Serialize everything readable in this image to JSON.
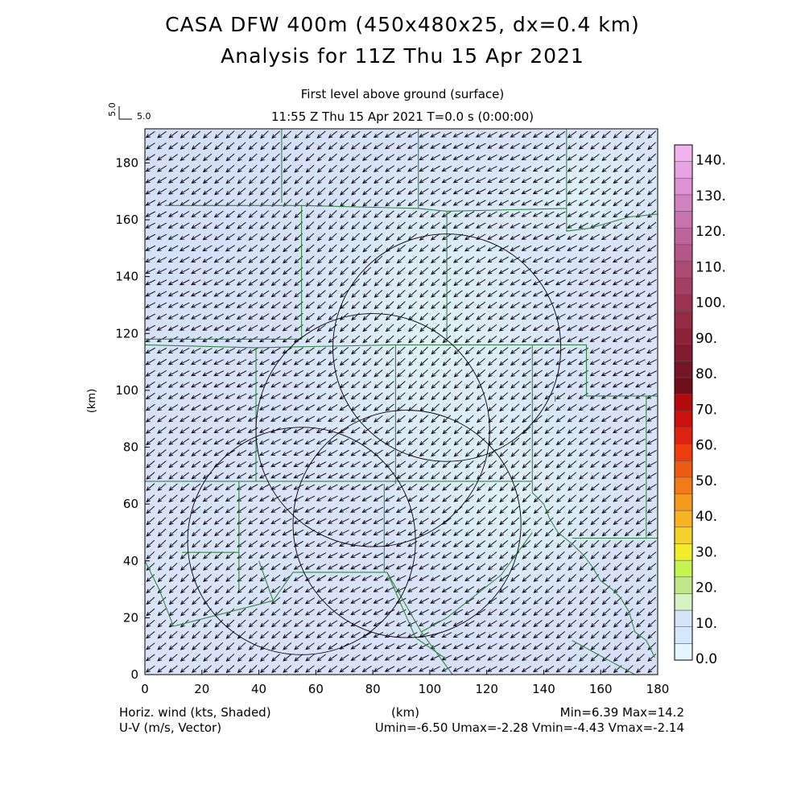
{
  "title_line1": "CASA DFW 400m (450x480x25, dx=0.4 km)",
  "title_line2": "Analysis for 11Z Thu 15 Apr 2021",
  "level_label": "First level above ground (surface)",
  "time_label": "11:55 Z Thu 15 Apr 2021   T=0.0 s (0:00:00)",
  "vector_key": {
    "vertical": "5.0",
    "horizontal": "5.0"
  },
  "footer": {
    "left1": "Horiz. wind (kts, Shaded)",
    "left2": "U-V (m/s, Vector)",
    "center": "(km)",
    "right1": "Min=6.39 Max=14.2",
    "right2": "Umin=-6.50 Umax=-2.28 Vmin=-4.43 Vmax=-2.14"
  },
  "colors": {
    "field_light": "#d8e2fb",
    "field_pale": "#dff3f7",
    "boundary": "#2d8a3d",
    "circle": "#000000",
    "vector": "#000000"
  },
  "chart_data": {
    "type": "contour-map",
    "x_axis": {
      "label": "(km)",
      "range": [
        0,
        180
      ],
      "ticks": [
        0,
        20,
        40,
        60,
        80,
        100,
        120,
        140,
        160,
        180
      ]
    },
    "y_axis": {
      "label": "(km)",
      "range": [
        0,
        192
      ],
      "ticks": [
        0,
        20,
        40,
        60,
        80,
        100,
        120,
        140,
        160,
        180
      ]
    },
    "field": {
      "name": "Horiz. wind (kts, Shaded)",
      "min": 6.39,
      "max": 14.2
    },
    "vector_field": {
      "name": "U-V (m/s, Vector)",
      "umin": -6.5,
      "umax": -2.28,
      "vmin": -4.43,
      "vmax": -2.14,
      "spacing_km": 4
    },
    "colorbar": {
      "labels": [
        "0.0",
        "10.",
        "20.",
        "30.",
        "40.",
        "50.",
        "60.",
        "70.",
        "80.",
        "90.",
        "100.",
        "110.",
        "120.",
        "130.",
        "140."
      ],
      "colors": [
        "#e3f5fd",
        "#d2e8fb",
        "#d4e5fb",
        "#d5f2c2",
        "#bfe88b",
        "#c4f450",
        "#f0ee2c",
        "#f5d22a",
        "#f7b322",
        "#f69a1d",
        "#f37b17",
        "#ef5a13",
        "#ee3c0e",
        "#de2410",
        "#cd100e",
        "#b40c0d",
        "#6e0f1c",
        "#761526",
        "#821a2f",
        "#8c2238",
        "#952a44",
        "#9c3352",
        "#a43e62",
        "#ac4a73",
        "#b45786",
        "#bd649a",
        "#c673ae",
        "#d082c1",
        "#dc92d3",
        "#e8a3e2",
        "#f3b3ee"
      ]
    },
    "radar_circles_km": [
      {
        "cx": 55,
        "cy": 47,
        "r": 40
      },
      {
        "cx": 80,
        "cy": 86,
        "r": 41
      },
      {
        "cx": 106,
        "cy": 115,
        "r": 40
      },
      {
        "cx": 92,
        "cy": 53,
        "r": 40
      }
    ],
    "county_boundaries_km": [
      [
        [
          48,
          192
        ],
        [
          48,
          166
        ]
      ],
      [
        [
          96,
          192
        ],
        [
          96,
          164
        ]
      ],
      [
        [
          148,
          192
        ],
        [
          148,
          164
        ]
      ],
      [
        [
          7,
          165
        ],
        [
          55,
          165
        ],
        [
          55,
          118
        ],
        [
          0,
          118
        ]
      ],
      [
        [
          55,
          165
        ],
        [
          96,
          164
        ],
        [
          106,
          163
        ],
        [
          148,
          164
        ]
      ],
      [
        [
          106,
          163
        ],
        [
          106,
          117
        ]
      ],
      [
        [
          148,
          164
        ],
        [
          148,
          156
        ],
        [
          156,
          157
        ],
        [
          170,
          161
        ],
        [
          180,
          162
        ]
      ],
      [
        [
          0,
          116
        ],
        [
          39,
          115
        ],
        [
          88,
          116
        ],
        [
          155,
          116
        ],
        [
          155,
          98
        ],
        [
          180,
          98
        ]
      ],
      [
        [
          155,
          116
        ],
        [
          155,
          98
        ]
      ],
      [
        [
          39,
          115
        ],
        [
          39,
          68
        ]
      ],
      [
        [
          88,
          116
        ],
        [
          88,
          67
        ]
      ],
      [
        [
          136,
          116
        ],
        [
          136,
          68
        ]
      ],
      [
        [
          144,
          98
        ],
        [
          144,
          96
        ]
      ],
      [
        [
          0,
          68
        ],
        [
          33,
          68
        ],
        [
          33,
          30
        ]
      ],
      [
        [
          33,
          68
        ],
        [
          39,
          68
        ],
        [
          136,
          68
        ]
      ],
      [
        [
          84,
          67
        ],
        [
          84,
          36
        ]
      ],
      [
        [
          136,
          68
        ],
        [
          136,
          64
        ],
        [
          140,
          60
        ],
        [
          142,
          55
        ],
        [
          145,
          50
        ],
        [
          150,
          46
        ],
        [
          154,
          42
        ],
        [
          157,
          38
        ],
        [
          160,
          33
        ],
        [
          164,
          30
        ],
        [
          167,
          27
        ],
        [
          170,
          22
        ],
        [
          172,
          15
        ],
        [
          176,
          12
        ],
        [
          179,
          6
        ]
      ],
      [
        [
          176,
          48
        ],
        [
          176,
          98
        ]
      ],
      [
        [
          180,
          98
        ],
        [
          180,
          48
        ],
        [
          176,
          48
        ],
        [
          150,
          48
        ]
      ],
      [
        [
          0,
          40
        ],
        [
          5,
          30
        ],
        [
          10,
          17
        ]
      ],
      [
        [
          33,
          43
        ],
        [
          13,
          43
        ]
      ],
      [
        [
          10,
          17
        ],
        [
          45,
          26
        ],
        [
          40,
          40
        ]
      ],
      [
        [
          45,
          26
        ],
        [
          52,
          36
        ],
        [
          85,
          36
        ],
        [
          97,
          15
        ],
        [
          108,
          0
        ]
      ],
      [
        [
          85,
          36
        ],
        [
          95,
          13
        ],
        [
          105,
          6
        ]
      ],
      [
        [
          136,
          50
        ],
        [
          125,
          35
        ],
        [
          106,
          20
        ],
        [
          97,
          15
        ]
      ],
      [
        [
          150,
          12
        ],
        [
          172,
          0
        ]
      ]
    ]
  }
}
